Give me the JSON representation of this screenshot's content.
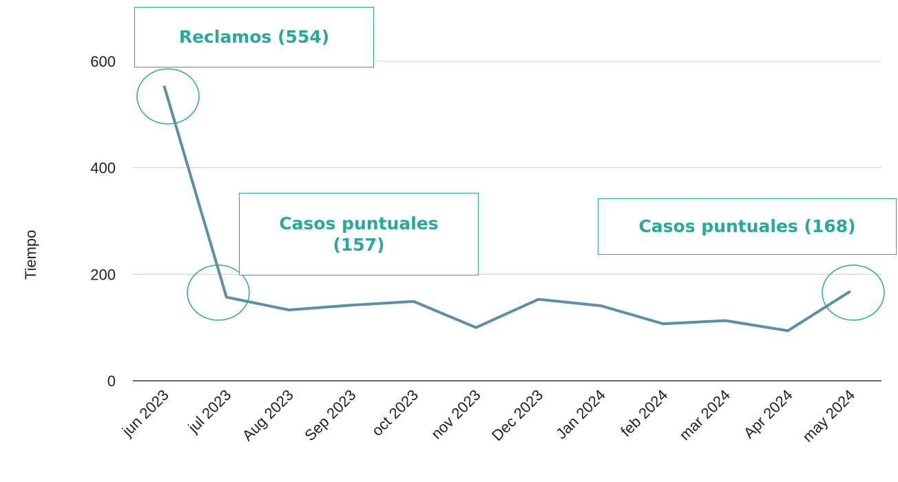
{
  "chart_data": {
    "type": "line",
    "y_label": "Tiempo",
    "categories": [
      "jun 2023",
      "jul 2023",
      "Aug 2023",
      "Sep 2023",
      "oct 2023",
      "nov 2023",
      "Dec 2023",
      "Jan 2024",
      "feb 2024",
      "mar 2024",
      "Apr 2024",
      "may 2024"
    ],
    "values": [
      554,
      157,
      133,
      142,
      149,
      100,
      153,
      141,
      107,
      113,
      94,
      168
    ],
    "color": "#5b8fa8",
    "ylim": [
      0,
      600
    ],
    "yticks": [
      0,
      200,
      400,
      600
    ],
    "grid": true,
    "annotations": [
      {
        "text": "Reclamos (554)"
      },
      {
        "text": "Casos puntuales (157)"
      },
      {
        "text": "Casos puntuales (168)"
      }
    ],
    "annotation_color": "#2aa89a"
  }
}
